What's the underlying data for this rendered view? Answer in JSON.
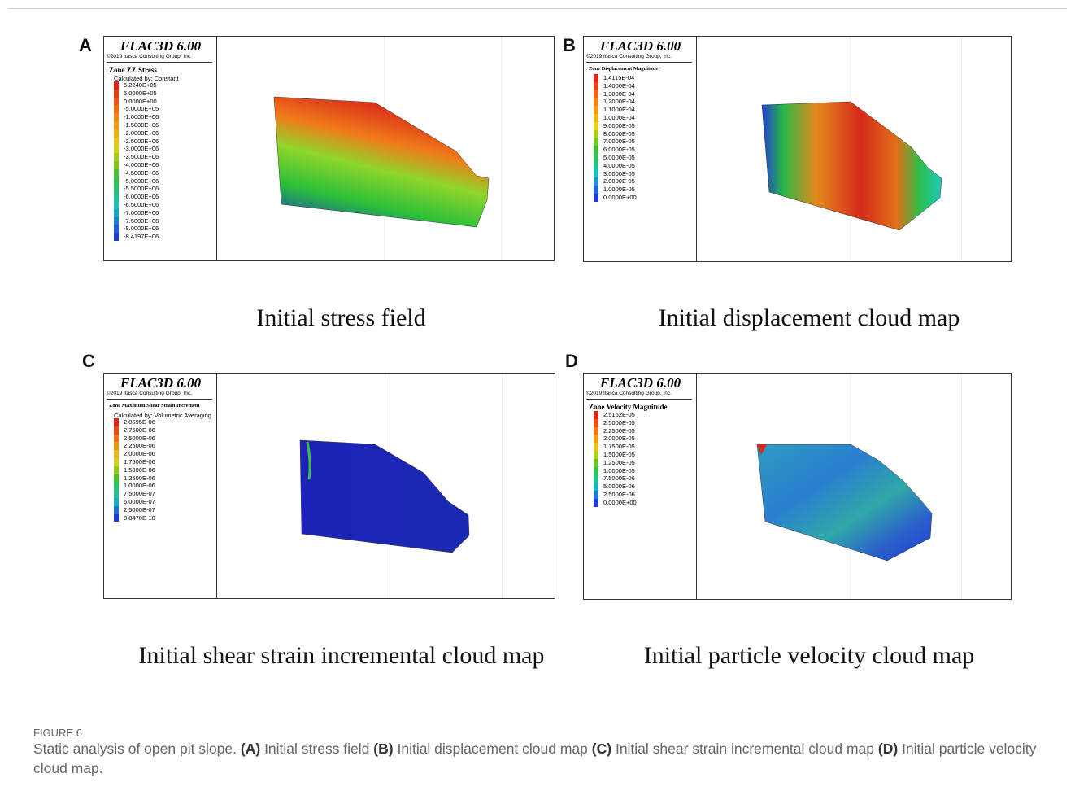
{
  "panels": [
    {
      "letter": "A",
      "software": "FLAC3D 6.00",
      "copyright": "©2019 Itasca Consulting Group, Inc.",
      "legend_title": "Zone ZZ Stress",
      "legend_subtitle": "Calculated by: Constant",
      "legend_entries": [
        "5.2240E+05",
        "5.0000E+05",
        "0.0000E+00",
        "-5.0000E+05",
        "-1.0000E+06",
        "-1.5000E+06",
        "-2.0000E+06",
        "-2.5000E+06",
        "-3.0000E+06",
        "-3.5000E+06",
        "-4.0000E+06",
        "-4.5000E+06",
        "-5.0000E+06",
        "-5.5000E+06",
        "-6.0000E+06",
        "-6.5000E+06",
        "-7.0000E+06",
        "-7.5000E+06",
        "-8.0000E+06",
        "-8.4197E+06"
      ],
      "caption": "Initial stress field"
    },
    {
      "letter": "B",
      "software": "FLAC3D 6.00",
      "copyright": "©2019 Itasca Consulting Group, Inc.",
      "legend_title": "Zone Displacement Magnitude",
      "legend_entries": [
        "1.4115E-04",
        "1.4000E-04",
        "1.3000E-04",
        "1.2000E-04",
        "1.1000E-04",
        "1.0000E-04",
        "9.0000E-05",
        "8.0000E-05",
        "7.0000E-05",
        "6.0000E-05",
        "5.0000E-05",
        "4.0000E-05",
        "3.0000E-05",
        "2.0000E-05",
        "1.0000E-05",
        "0.0000E+00"
      ],
      "caption": "Initial displacement cloud map"
    },
    {
      "letter": "C",
      "software": "FLAC3D 6.00",
      "copyright": "©2019 Itasca Consulting Group, Inc.",
      "legend_title": "Zone Maximum Shear Strain Increment",
      "legend_subtitle": "Calculated by: Volumetric Averaging",
      "legend_entries": [
        "2.8595E-06",
        "2.7500E-06",
        "2.5000E-06",
        "2.2500E-06",
        "2.0000E-06",
        "1.7500E-06",
        "1.5000E-06",
        "1.2500E-06",
        "1.0000E-06",
        "7.5000E-07",
        "5.0000E-07",
        "2.5000E-07",
        "8.8470E-10"
      ],
      "caption": "Initial shear strain incremental cloud map"
    },
    {
      "letter": "D",
      "software": "FLAC3D 6.00",
      "copyright": "©2019 Itasca Consulting Group, Inc.",
      "legend_title": "Zone Velocity Magnitude",
      "legend_entries": [
        "2.5152E-05",
        "2.5000E-05",
        "2.2500E-05",
        "2.0000E-05",
        "1.7500E-05",
        "1.5000E-05",
        "1.2500E-05",
        "1.0000E-05",
        "7.5000E-06",
        "5.0000E-06",
        "2.5000E-06",
        "0.0000E+00"
      ],
      "caption": "Initial particle velocity cloud map"
    }
  ],
  "figure_label": "FIGURE 6",
  "figure_caption": {
    "lead": "Static analysis of open pit slope.",
    "items": [
      {
        "label": "(A)",
        "text": "Initial stress field"
      },
      {
        "label": "(B)",
        "text": "Initial displacement cloud map"
      },
      {
        "label": "(C)",
        "text": "Initial shear strain incremental cloud map"
      },
      {
        "label": "(D)",
        "text": "Initial particle velocity cloud map."
      }
    ]
  }
}
